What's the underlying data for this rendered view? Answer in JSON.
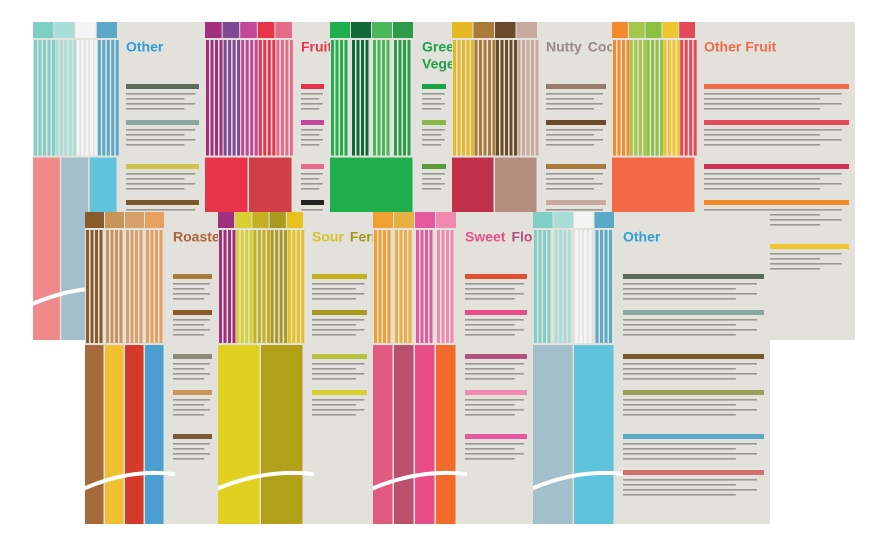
{
  "posters": [
    {
      "title": [
        "Other"
      ]
    },
    {
      "title": [
        "Fruity"
      ]
    },
    {
      "title": [
        "Green",
        "Vegete"
      ]
    },
    {
      "title": [
        "Nutty",
        "Cocoa"
      ]
    },
    {
      "title": [
        "Other Fruit"
      ]
    },
    {
      "title": [
        "Roasted"
      ]
    },
    {
      "title": [
        "Sour",
        "Fermen"
      ]
    },
    {
      "title": [
        "Sweet",
        "Floral"
      ]
    },
    {
      "title": [
        "Other"
      ]
    }
  ]
}
